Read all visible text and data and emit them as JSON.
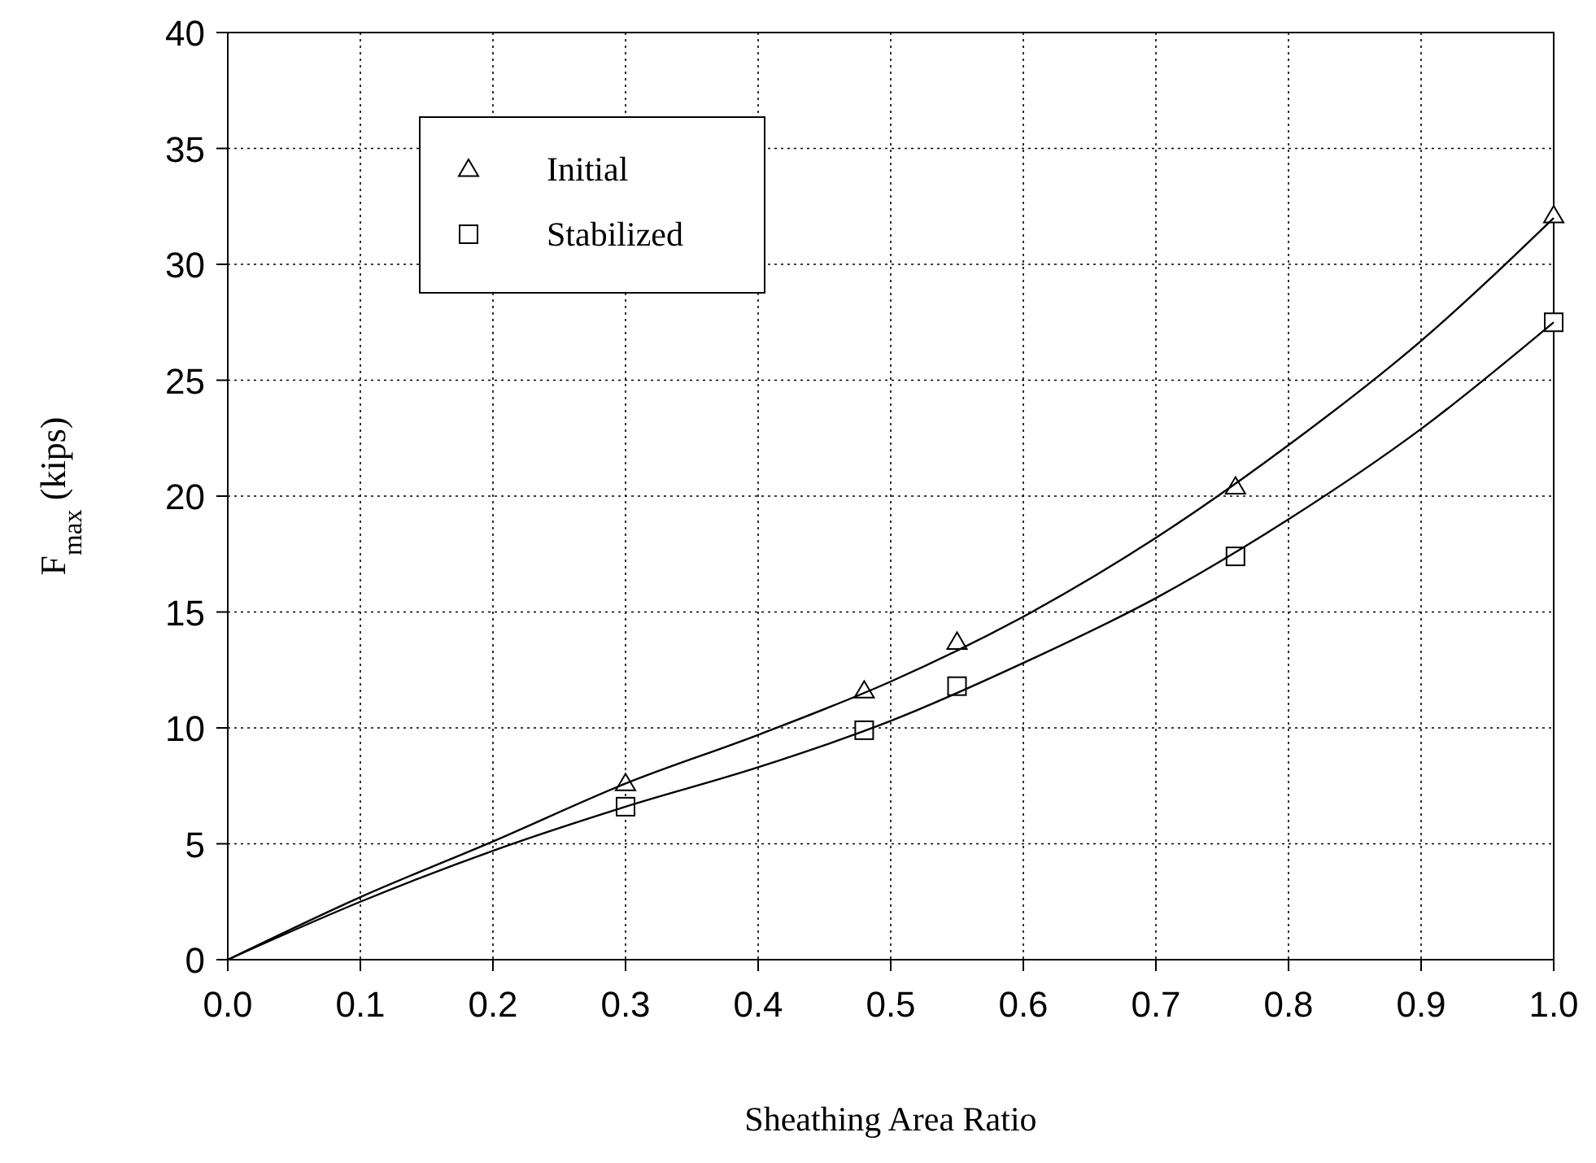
{
  "chart_data": {
    "type": "scatter",
    "xlabel": "Sheathing Area Ratio",
    "ylabel": "F$_{max}$ (kips)",
    "xlim": [
      0,
      1
    ],
    "xticks": [
      {
        "value": 0,
        "label": "0.0"
      },
      {
        "value": 0.1,
        "label": "0.1"
      },
      {
        "value": 0.2,
        "label": "0.2"
      },
      {
        "value": 0.3,
        "label": "0.3"
      },
      {
        "value": 0.4,
        "label": "0.4"
      },
      {
        "value": 0.5,
        "label": "0.5"
      },
      {
        "value": 0.6,
        "label": "0.6"
      },
      {
        "value": 0.7,
        "label": "0.7"
      },
      {
        "value": 0.8,
        "label": "0.8"
      },
      {
        "value": 0.9,
        "label": "0.9"
      },
      {
        "value": 1,
        "label": "1.0"
      }
    ],
    "ylim": [
      0,
      40
    ],
    "yticks": [
      0,
      5,
      10,
      15,
      20,
      25,
      30,
      35,
      40
    ],
    "grid": true,
    "legend": "top left",
    "series": [
      {
        "name": "Initial",
        "color": "#000000",
        "marker": "triangle",
        "x": [
          0.3,
          0.48,
          0.55,
          0.76,
          1.0
        ],
        "values": [
          7.6,
          11.6,
          13.7,
          20.4,
          32.1
        ]
      },
      {
        "name": "Stabilized",
        "color": "#000000",
        "marker": "square",
        "x": [
          0.3,
          0.48,
          0.55,
          0.76,
          1.0
        ],
        "values": [
          6.6,
          9.9,
          11.8,
          17.4,
          27.5
        ]
      },
      {
        "type": "line",
        "color": "#000000",
        "x": [
          0,
          0.1,
          0.2,
          0.3,
          0.4,
          0.5,
          0.6,
          0.7,
          0.8,
          0.9,
          1.0
        ],
        "values": [
          0,
          2.7,
          5.1,
          7.6,
          9.7,
          12.0,
          14.8,
          18.2,
          22.2,
          26.7,
          32.0
        ]
      },
      {
        "type": "line",
        "color": "#000000",
        "x": [
          0,
          0.1,
          0.2,
          0.3,
          0.4,
          0.5,
          0.6,
          0.7,
          0.8,
          0.9,
          1.0
        ],
        "values": [
          0,
          2.5,
          4.7,
          6.6,
          8.3,
          10.3,
          12.8,
          15.6,
          19.0,
          22.9,
          27.5
        ]
      }
    ]
  }
}
